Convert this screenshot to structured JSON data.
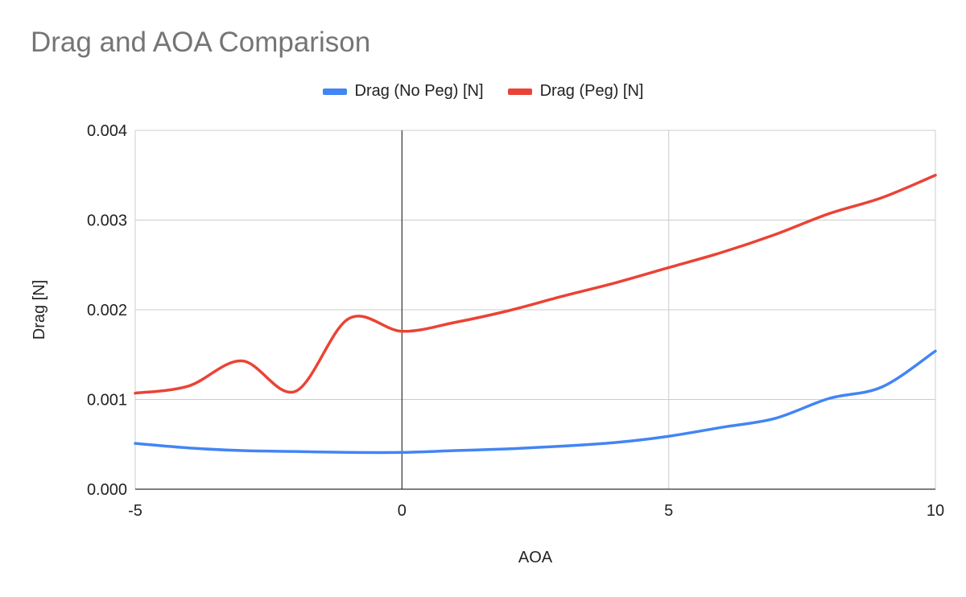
{
  "chart_data": {
    "type": "line",
    "title": "Drag and AOA Comparison",
    "xlabel": "AOA",
    "ylabel": "Drag [N]",
    "xlim": [
      -5,
      10
    ],
    "ylim": [
      0,
      0.004
    ],
    "x_ticks": [
      -5,
      0,
      5,
      10
    ],
    "x_tick_labels": [
      "-5",
      "0",
      "5",
      "10"
    ],
    "y_ticks": [
      0,
      0.001,
      0.002,
      0.003,
      0.004
    ],
    "y_tick_labels": [
      "0.000",
      "0.001",
      "0.002",
      "0.003",
      "0.004"
    ],
    "grid": true,
    "legend_position": "top",
    "x": [
      -5,
      -4,
      -3,
      -2,
      -1,
      0,
      1,
      2,
      3,
      4,
      5,
      6,
      7,
      8,
      9,
      10
    ],
    "series": [
      {
        "name": "Drag (No Peg) [N]",
        "color": "#4285f4",
        "values": [
          0.00051,
          0.00046,
          0.00043,
          0.00042,
          0.00041,
          0.00041,
          0.00043,
          0.00045,
          0.00048,
          0.00052,
          0.00059,
          0.00069,
          0.00079,
          0.00101,
          0.00114,
          0.00154
        ]
      },
      {
        "name": "Drag (Peg) [N]",
        "color": "#ea4335",
        "values": [
          0.00107,
          0.00115,
          0.00143,
          0.00109,
          0.0019,
          0.00176,
          0.00186,
          0.00199,
          0.00215,
          0.0023,
          0.00247,
          0.00264,
          0.00284,
          0.00307,
          0.00325,
          0.0035
        ]
      }
    ]
  }
}
